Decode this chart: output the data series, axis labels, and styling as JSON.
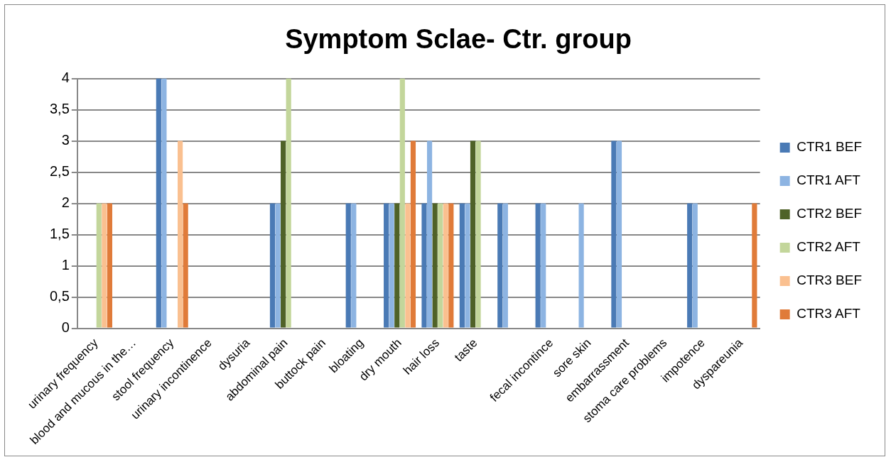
{
  "chart_data": {
    "type": "bar",
    "title": "Symptom Sclae- Ctr. group",
    "categories": [
      "urinary frequency",
      "blood and mucous in the…",
      "stool frequency",
      "urinary incontinence",
      "dysuria",
      "abdominal pain",
      "buttock pain",
      "bloating",
      "dry mouth",
      "hair loss",
      "taste",
      null,
      "fecal incontince",
      "sore skin",
      "embarrassment",
      "stoma care problems",
      "impotence",
      "dyspareunia"
    ],
    "series": [
      {
        "name": "CTR1 BEF",
        "color": "#4a7ab5",
        "values": [
          0,
          0,
          4,
          0,
          0,
          2,
          0,
          2,
          2,
          2,
          2,
          2,
          2,
          0,
          3,
          0,
          2,
          0
        ]
      },
      {
        "name": "CTR1 AFT",
        "color": "#8db4e2",
        "values": [
          0,
          0,
          4,
          0,
          0,
          2,
          0,
          2,
          2,
          3,
          2,
          2,
          2,
          2,
          3,
          0,
          2,
          0
        ]
      },
      {
        "name": "CTR2 BEF",
        "color": "#4f6228",
        "values": [
          0,
          0,
          0,
          0,
          0,
          3,
          0,
          0,
          2,
          2,
          3,
          0,
          0,
          0,
          0,
          0,
          0,
          0
        ]
      },
      {
        "name": "CTR2 AFT",
        "color": "#c3d69b",
        "values": [
          2,
          0,
          0,
          0,
          0,
          4,
          0,
          0,
          4,
          2,
          3,
          0,
          0,
          0,
          0,
          0,
          0,
          0
        ]
      },
      {
        "name": "CTR3 BEF",
        "color": "#fac090",
        "values": [
          2,
          0,
          3,
          0,
          0,
          0,
          0,
          0,
          2,
          2,
          0,
          0,
          0,
          0,
          0,
          0,
          0,
          0
        ]
      },
      {
        "name": "CTR3 AFT",
        "color": "#e07b39",
        "values": [
          2,
          0,
          2,
          0,
          0,
          0,
          0,
          0,
          3,
          2,
          0,
          0,
          0,
          0,
          0,
          0,
          0,
          2
        ]
      }
    ],
    "ylim": [
      0,
      4
    ],
    "yticks": [
      0,
      {
        "value": 0.5,
        "label": "0,5"
      },
      1,
      {
        "value": 1.5,
        "label": "1,5"
      },
      2,
      {
        "value": 2.5,
        "label": "2,5"
      },
      3,
      {
        "value": 3.5,
        "label": "3,5"
      },
      4
    ],
    "grid": "y",
    "legend": "right"
  }
}
